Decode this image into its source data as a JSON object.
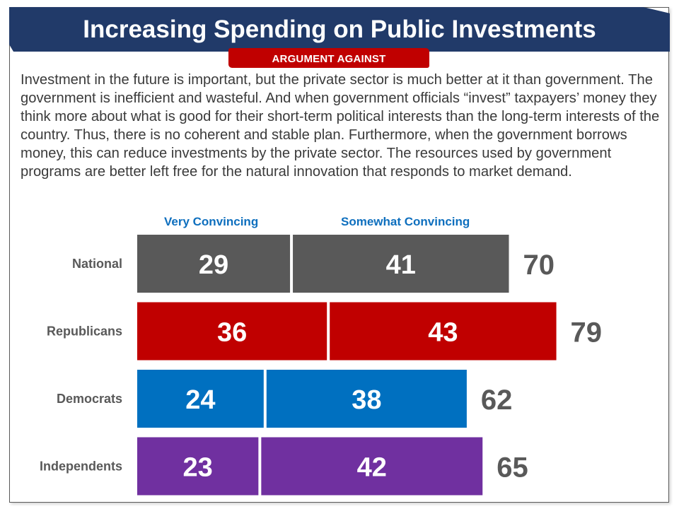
{
  "header": {
    "title": "Increasing Spending on Public Investments",
    "badge": "ARGUMENT AGAINST"
  },
  "argument_text": "Investment in the future is important, but the private sector is much better at it than government. The government is inefficient and wasteful. And when government officials “invest” taxpayers’ money they think more about what is good for their short-term political interests than the long-term interests of the country. Thus, there is no coherent and stable plan. Furthermore, when the government borrows money, this can reduce investments by the private sector. The resources used by government programs are better left free for the natural innovation that responds to market demand.",
  "colors": {
    "header_bg": "#213a69",
    "badge_bg": "#c00000",
    "legend_text": "#0e6fbe",
    "National": "#595959",
    "Republicans": "#c00000",
    "Democrats": "#0070c0",
    "Independents": "#7030a0"
  },
  "chart_data": {
    "type": "bar",
    "orientation": "horizontal",
    "stacked": true,
    "title": "Increasing Spending on Public Investments",
    "categories": [
      "National",
      "Republicans",
      "Democrats",
      "Independents"
    ],
    "series": [
      {
        "name": "Very Convincing",
        "values": [
          29,
          36,
          24,
          23
        ]
      },
      {
        "name": "Somewhat Convincing",
        "values": [
          41,
          43,
          38,
          42
        ]
      }
    ],
    "totals": [
      70,
      79,
      62,
      65
    ],
    "legend": [
      "Very Convincing",
      "Somewhat Convincing"
    ],
    "legend_position": "top",
    "xlabel": "",
    "ylabel": "",
    "grid": false,
    "data_labels": true
  }
}
